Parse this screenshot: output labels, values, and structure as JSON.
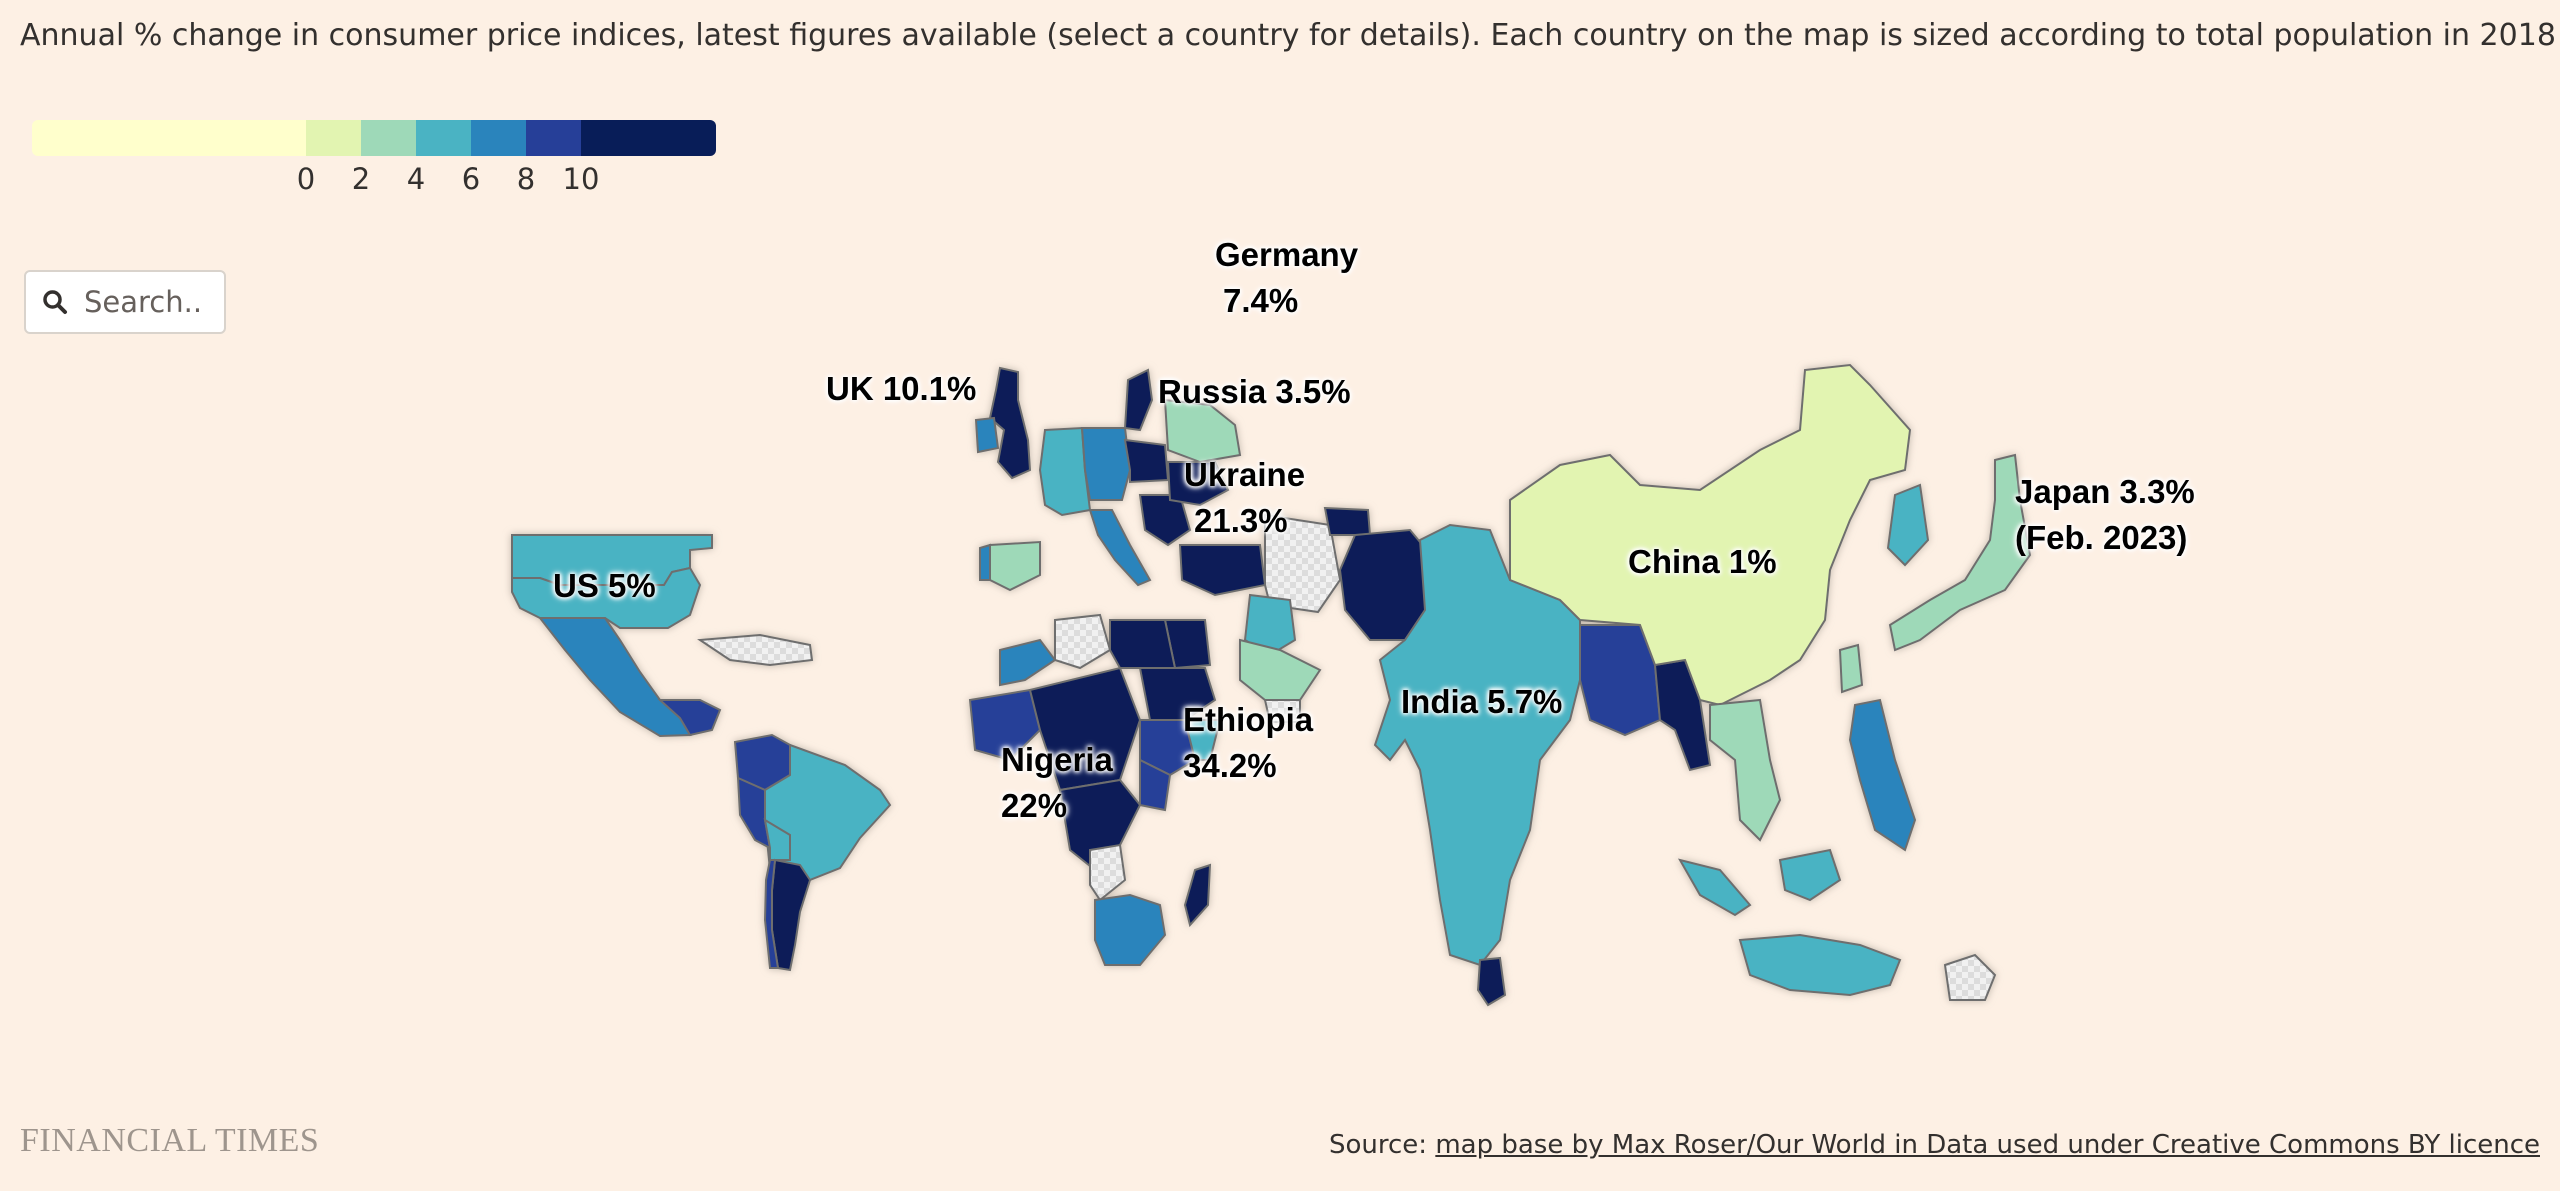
{
  "subtitle": "Annual % change in consumer price indices, latest figures available (select a country for details). Each country on the map is sized according to total population in 2018",
  "legend": {
    "ticks": [
      "0",
      "2",
      "4",
      "6",
      "8",
      "10"
    ],
    "colors": [
      "#ffffcc",
      "#e2f4b1",
      "#9ed9b8",
      "#4ab3c3",
      "#2a84bc",
      "#263f98",
      "#081d58"
    ]
  },
  "search": {
    "placeholder": "Search.."
  },
  "colors": {
    "background": "#fdf0e4",
    "no_data": "#e8e8e8",
    "under_0": "#ffffcc",
    "r0_2": "#e2f4b1",
    "r2_4": "#9ed9b8",
    "r4_6": "#4ab3c3",
    "r6_8": "#2a84bc",
    "r8_10": "#263f98",
    "over_10": "#081d58"
  },
  "map_labels": [
    {
      "id": "germany",
      "lines": [
        "Germany",
        "7.4%"
      ]
    },
    {
      "id": "uk",
      "lines": [
        "UK 10.1%"
      ]
    },
    {
      "id": "russia",
      "lines": [
        "Russia 3.5%"
      ]
    },
    {
      "id": "ukraine",
      "lines": [
        "Ukraine",
        "21.3%"
      ]
    },
    {
      "id": "us",
      "lines": [
        "US 5%"
      ]
    },
    {
      "id": "china",
      "lines": [
        "China 1%"
      ]
    },
    {
      "id": "japan",
      "lines": [
        "Japan 3.3%",
        "(Feb. 2023)"
      ]
    },
    {
      "id": "india",
      "lines": [
        "India 5.7%"
      ]
    },
    {
      "id": "ethiopia",
      "lines": [
        "Ethiopia",
        "34.2%"
      ]
    },
    {
      "id": "nigeria",
      "lines": [
        "Nigeria",
        "22%"
      ]
    }
  ],
  "footer": {
    "logo": "FINANCIAL TIMES",
    "source_prefix": "Source: ",
    "source_link": "map base by Max Roser/Our World in Data used under Creative Commons BY licence"
  }
}
